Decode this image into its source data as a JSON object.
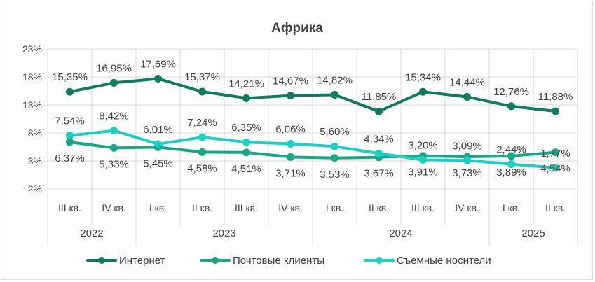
{
  "chart_data": {
    "type": "line",
    "title": "Африка",
    "ylim": [
      -2,
      23
    ],
    "yticks": [
      "23%",
      "18%",
      "13%",
      "8%",
      "3%",
      "-2%"
    ],
    "ytick_values": [
      23,
      18,
      13,
      8,
      3,
      -2
    ],
    "categories": [
      "III кв.",
      "IV кв.",
      "I кв.",
      "II кв.",
      "III кв.",
      "IV кв.",
      "I кв.",
      "II кв.",
      "III кв.",
      "IV кв.",
      "I кв.",
      "II кв."
    ],
    "years": [
      {
        "label": "2022",
        "span": [
          0,
          1
        ]
      },
      {
        "label": "2023",
        "span": [
          2,
          5
        ]
      },
      {
        "label": "2024",
        "span": [
          6,
          9
        ]
      },
      {
        "label": "2025",
        "span": [
          10,
          11
        ]
      }
    ],
    "grid": true,
    "legend_position": "bottom",
    "series": [
      {
        "name": "Интернет",
        "color": "#0f7b63",
        "values": [
          15.35,
          16.95,
          17.69,
          15.37,
          14.21,
          14.67,
          14.82,
          11.85,
          15.34,
          14.44,
          12.76,
          11.88
        ],
        "labels": [
          "15,35%",
          "16,95%",
          "17,69%",
          "15,37%",
          "14,21%",
          "14,67%",
          "14,82%",
          "11,85%",
          "15,34%",
          "14,44%",
          "12,76%",
          "11,88%"
        ],
        "label_pos": "above"
      },
      {
        "name": "Почтовые клиенты",
        "color": "#16a68a",
        "values": [
          6.37,
          5.33,
          5.45,
          4.58,
          4.51,
          3.71,
          3.53,
          3.67,
          3.91,
          3.73,
          3.89,
          4.54
        ],
        "labels": [
          "6,37%",
          "5,33%",
          "5,45%",
          "4,58%",
          "4,51%",
          "3,71%",
          "3,53%",
          "3,67%",
          "3,91%",
          "3,73%",
          "3,89%",
          "4,54%"
        ],
        "label_pos": "below"
      },
      {
        "name": "Съемные носители",
        "color": "#1ccfc4",
        "values": [
          7.54,
          8.42,
          6.01,
          7.24,
          6.35,
          6.06,
          5.6,
          4.34,
          3.2,
          3.09,
          2.44,
          1.77
        ],
        "labels": [
          "7,54%",
          "8,42%",
          "6,01%",
          "7,24%",
          "6,35%",
          "6,06%",
          "5,60%",
          "4,34%",
          "3,20%",
          "3,09%",
          "2,44%",
          "1,77%"
        ],
        "label_pos": "above"
      }
    ]
  }
}
